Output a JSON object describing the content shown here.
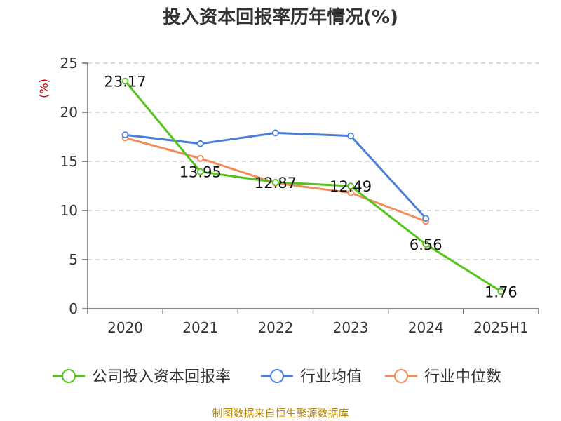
{
  "chart_data": {
    "type": "line",
    "title": "投入资本回报率历年情况(%)",
    "unit_label": "(%)",
    "categories": [
      "2020",
      "2021",
      "2022",
      "2023",
      "2024",
      "2025H1"
    ],
    "ylim": [
      0,
      25
    ],
    "yticks": [
      0,
      5,
      10,
      15,
      20,
      25
    ],
    "grid": true,
    "legend_position": "bottom",
    "series": [
      {
        "name": "公司投入资本回报率",
        "color": "#52c41a",
        "values": [
          23.17,
          13.95,
          12.87,
          12.49,
          6.56,
          1.76
        ],
        "labels": [
          "23.17",
          "13.95",
          "12.87",
          "12.49",
          "6.56",
          "1.76"
        ]
      },
      {
        "name": "行业均值",
        "color": "#4a7fd9",
        "values": [
          17.7,
          16.8,
          17.9,
          17.6,
          9.2,
          null
        ]
      },
      {
        "name": "行业中位数",
        "color": "#f28c5a",
        "values": [
          17.4,
          15.3,
          12.8,
          11.8,
          8.9,
          null
        ]
      }
    ],
    "source": "制图数据来自恒生聚源数据库"
  }
}
